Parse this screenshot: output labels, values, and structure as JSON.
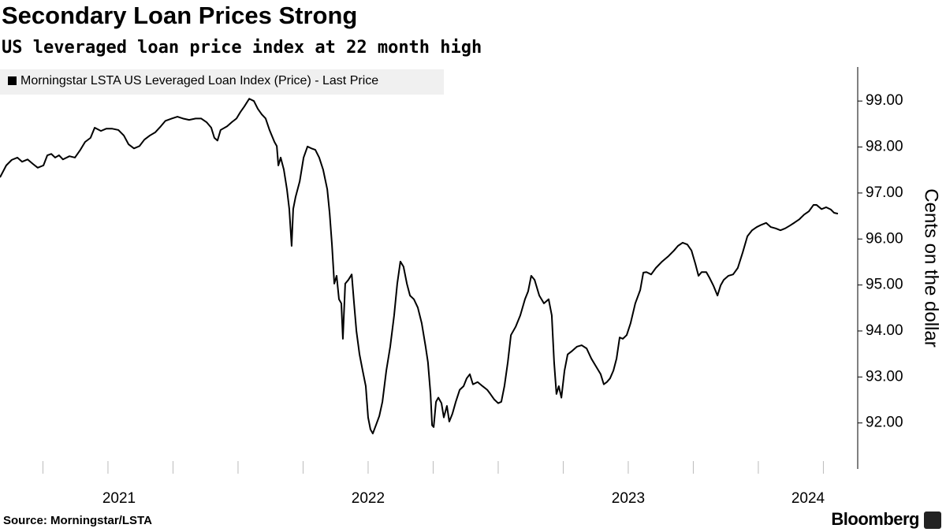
{
  "chart_data": {
    "type": "line",
    "title": "Secondary Loan Prices Strong",
    "subtitle": "US leveraged loan price index at 22 month high",
    "y_axis_label": "Cents on the dollar",
    "source": "Source: Morningstar/LSTA",
    "brand": "Bloomberg",
    "x": [
      2021.085,
      2021.109,
      2021.13,
      2021.152,
      2021.17,
      2021.191,
      2021.212,
      2021.23,
      2021.252,
      2021.267,
      2021.282,
      2021.297,
      2021.312,
      2021.327,
      2021.352,
      2021.373,
      2021.394,
      2021.412,
      2021.433,
      2021.449,
      2021.473,
      2021.494,
      2021.515,
      2021.54,
      2021.561,
      2021.579,
      2021.6,
      2021.621,
      2021.64,
      2021.661,
      2021.682,
      2021.703,
      2021.721,
      2021.746,
      2021.767,
      2021.788,
      2021.812,
      2021.837,
      2021.858,
      2021.879,
      2021.897,
      2021.909,
      2021.921,
      2021.933,
      2021.958,
      2021.976,
      2021.994,
      2022.009,
      2022.024,
      2022.043,
      2022.061,
      2022.076,
      2022.091,
      2022.106,
      2022.121,
      2022.14,
      2022.149,
      2022.155,
      2022.164,
      2022.176,
      2022.188,
      2022.197,
      2022.206,
      2022.212,
      2022.221,
      2022.237,
      2022.252,
      2022.267,
      2022.282,
      2022.297,
      2022.312,
      2022.327,
      2022.343,
      2022.352,
      2022.361,
      2022.37,
      2022.379,
      2022.388,
      2022.397,
      2022.403,
      2022.412,
      2022.424,
      2022.437,
      2022.446,
      2022.455,
      2022.467,
      2022.479,
      2022.491,
      2022.5,
      2022.509,
      2022.518,
      2022.53,
      2022.543,
      2022.555,
      2022.57,
      2022.585,
      2022.6,
      2022.612,
      2022.624,
      2022.636,
      2022.649,
      2022.661,
      2022.676,
      2022.691,
      2022.706,
      2022.721,
      2022.73,
      2022.74,
      2022.746,
      2022.752,
      2022.761,
      2022.77,
      2022.782,
      2022.791,
      2022.803,
      2022.812,
      2022.824,
      2022.837,
      2022.852,
      2022.867,
      2022.879,
      2022.891,
      2022.903,
      2022.921,
      2022.94,
      2022.958,
      2022.97,
      2022.985,
      2023.0,
      2023.012,
      2023.024,
      2023.037,
      2023.049,
      2023.067,
      2023.085,
      2023.103,
      2023.115,
      2023.127,
      2023.14,
      2023.158,
      2023.176,
      2023.194,
      2023.206,
      2023.215,
      2023.224,
      2023.233,
      2023.243,
      2023.255,
      2023.267,
      2023.285,
      2023.303,
      2023.321,
      2023.34,
      2023.358,
      2023.376,
      2023.394,
      2023.406,
      2023.418,
      2023.43,
      2023.443,
      2023.455,
      2023.467,
      2023.479,
      2023.494,
      2023.509,
      2023.527,
      2023.546,
      2023.558,
      2023.57,
      2023.588,
      2023.606,
      2023.63,
      2023.655,
      2023.676,
      2023.691,
      2023.709,
      2023.727,
      2023.743,
      2023.758,
      2023.77,
      2023.782,
      2023.8,
      2023.812,
      2023.827,
      2023.843,
      2023.855,
      2023.867,
      2023.885,
      2023.903,
      2023.921,
      2023.94,
      2023.958,
      2023.976,
      2023.994,
      2024.012,
      2024.03,
      2024.048,
      2024.067,
      2024.085,
      2024.103,
      2024.121,
      2024.14,
      2024.158,
      2024.176,
      2024.194,
      2024.212,
      2024.224,
      2024.243,
      2024.261,
      2024.279,
      2024.291,
      2024.306
    ],
    "series": [
      {
        "name": "Morningstar LSTA US Leveraged Loan Index (Price) - Last Price",
        "color": "#000000",
        "values": [
          97.34,
          97.6,
          97.72,
          97.77,
          97.68,
          97.73,
          97.63,
          97.55,
          97.6,
          97.82,
          97.85,
          97.77,
          97.82,
          97.73,
          97.8,
          97.77,
          97.94,
          98.11,
          98.2,
          98.42,
          98.35,
          98.4,
          98.4,
          98.37,
          98.25,
          98.06,
          97.97,
          98.02,
          98.16,
          98.25,
          98.32,
          98.45,
          98.57,
          98.62,
          98.66,
          98.62,
          98.59,
          98.62,
          98.62,
          98.54,
          98.42,
          98.2,
          98.14,
          98.37,
          98.45,
          98.54,
          98.62,
          98.76,
          98.88,
          99.05,
          99.0,
          98.83,
          98.71,
          98.62,
          98.37,
          98.11,
          98.02,
          97.6,
          97.77,
          97.51,
          97.08,
          96.65,
          95.85,
          96.65,
          96.91,
          97.25,
          97.77,
          98.01,
          97.97,
          97.94,
          97.77,
          97.51,
          97.08,
          96.57,
          95.88,
          95.03,
          95.2,
          94.69,
          94.6,
          93.83,
          95.03,
          95.11,
          95.23,
          94.6,
          94.0,
          93.49,
          93.14,
          92.8,
          92.12,
          91.86,
          91.77,
          91.95,
          92.15,
          92.46,
          93.14,
          93.66,
          94.34,
          95.03,
          95.51,
          95.4,
          95.03,
          94.77,
          94.69,
          94.51,
          94.17,
          93.66,
          93.32,
          92.63,
          91.95,
          91.91,
          92.46,
          92.55,
          92.43,
          92.12,
          92.37,
          92.03,
          92.2,
          92.46,
          92.72,
          92.8,
          92.97,
          93.06,
          92.84,
          92.89,
          92.8,
          92.72,
          92.63,
          92.51,
          92.43,
          92.46,
          92.8,
          93.32,
          93.91,
          94.09,
          94.34,
          94.69,
          94.86,
          95.2,
          95.11,
          94.77,
          94.6,
          94.69,
          94.34,
          93.32,
          92.63,
          92.8,
          92.55,
          93.14,
          93.49,
          93.57,
          93.66,
          93.69,
          93.62,
          93.4,
          93.23,
          93.06,
          92.84,
          92.89,
          92.97,
          93.14,
          93.4,
          93.86,
          93.83,
          93.91,
          94.17,
          94.6,
          94.89,
          95.27,
          95.28,
          95.23,
          95.37,
          95.51,
          95.63,
          95.75,
          95.85,
          95.92,
          95.88,
          95.75,
          95.46,
          95.2,
          95.28,
          95.28,
          95.16,
          94.99,
          94.77,
          94.99,
          95.11,
          95.2,
          95.23,
          95.37,
          95.71,
          96.06,
          96.19,
          96.26,
          96.31,
          96.35,
          96.26,
          96.23,
          96.19,
          96.23,
          96.29,
          96.36,
          96.43,
          96.53,
          96.6,
          96.74,
          96.74,
          96.65,
          96.69,
          96.64,
          96.57,
          96.55
        ]
      }
    ],
    "xlim": [
      2021.085,
      2024.382
    ],
    "xticks": [
      2021,
      2022,
      2023,
      2024
    ],
    "ylim": [
      91.0,
      99.74
    ],
    "yticks": [
      {
        "value": 92,
        "label": "92.00"
      },
      {
        "value": 93,
        "label": "93.00"
      },
      {
        "value": 94,
        "label": "94.00"
      },
      {
        "value": 95,
        "label": "95.00"
      },
      {
        "value": 96,
        "label": "96.00"
      },
      {
        "value": 97,
        "label": "97.00"
      },
      {
        "value": 98,
        "label": "98.00"
      },
      {
        "value": 99,
        "label": "99.00"
      }
    ],
    "grid": false,
    "legend": "top-left"
  }
}
